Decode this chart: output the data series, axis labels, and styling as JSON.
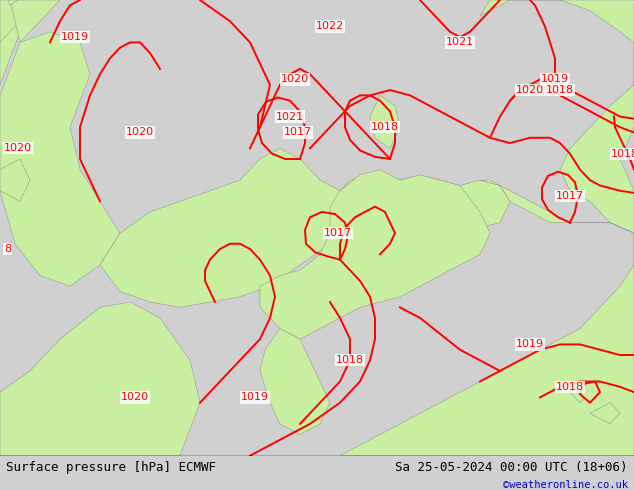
{
  "title_left": "Surface pressure [hPa] ECMWF",
  "title_right": "Sa 25-05-2024 00:00 UTC (18+06)",
  "copyright": "©weatheronline.co.uk",
  "bg_color": "#d0d0d0",
  "land_color_light": "#c8f0a0",
  "land_color_sea": "#d8d8d8",
  "contour_color": "#ff0000",
  "contour_linewidth": 1.4,
  "label_fontsize": 8,
  "title_fontsize": 9,
  "copyright_color": "#0000cc",
  "fig_width": 6.34,
  "fig_height": 4.9,
  "dpi": 100
}
